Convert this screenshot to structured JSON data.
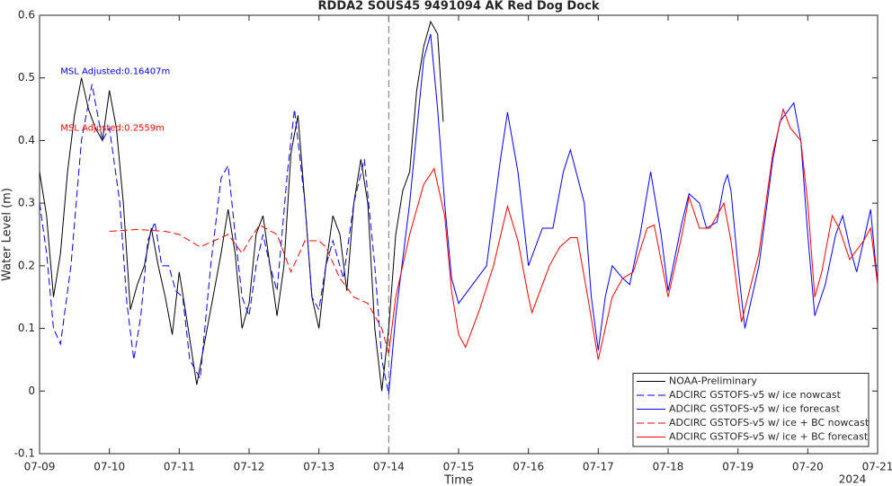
{
  "chart_data": {
    "type": "line",
    "title": "RDDA2 SOUS45 9491094 AK Red Dog Dock",
    "x_label": "Time",
    "y_label": "Water Level (m)",
    "x_year": "2024",
    "xlim": [
      9,
      21
    ],
    "ylim": [
      -0.1,
      0.6
    ],
    "xticks": [
      {
        "value": 9,
        "label": "07-09"
      },
      {
        "value": 10,
        "label": "07-10"
      },
      {
        "value": 11,
        "label": "07-11"
      },
      {
        "value": 12,
        "label": "07-12"
      },
      {
        "value": 13,
        "label": "07-13"
      },
      {
        "value": 14,
        "label": "07-14"
      },
      {
        "value": 15,
        "label": "07-15"
      },
      {
        "value": 16,
        "label": "07-16"
      },
      {
        "value": 17,
        "label": "07-17"
      },
      {
        "value": 18,
        "label": "07-18"
      },
      {
        "value": 19,
        "label": "07-19"
      },
      {
        "value": 20,
        "label": "07-20"
      },
      {
        "value": 21,
        "label": "07-21"
      }
    ],
    "yticks": [
      -0.1,
      0,
      0.1,
      0.2,
      0.3,
      0.4,
      0.5,
      0.6
    ],
    "grid": false,
    "legend": "lower-right",
    "divider_x": 14,
    "annotations": [
      {
        "text": "MSL Adjusted:0.16407m",
        "color": "#0000ff",
        "x": 9.3,
        "y": 0.51
      },
      {
        "text": "MSL Adjusted:0.2559m",
        "color": "#ff0000",
        "x": 9.3,
        "y": 0.42
      }
    ],
    "series": [
      {
        "name": "NOAA-Preliminary",
        "color": "#000000",
        "dash": false,
        "x": [
          9.0,
          9.1,
          9.2,
          9.3,
          9.4,
          9.5,
          9.6,
          9.7,
          9.8,
          9.9,
          10.0,
          10.1,
          10.2,
          10.3,
          10.4,
          10.5,
          10.6,
          10.7,
          10.8,
          10.9,
          11.0,
          11.1,
          11.25,
          11.4,
          11.5,
          11.6,
          11.7,
          11.8,
          11.9,
          12.0,
          12.1,
          12.2,
          12.3,
          12.4,
          12.5,
          12.6,
          12.7,
          12.8,
          12.9,
          13.0,
          13.1,
          13.2,
          13.3,
          13.4,
          13.5,
          13.6,
          13.7,
          13.8,
          13.9,
          14.0,
          14.1,
          14.2,
          14.3,
          14.4,
          14.5,
          14.6,
          14.7,
          14.78
        ],
        "values": [
          0.35,
          0.28,
          0.15,
          0.22,
          0.35,
          0.44,
          0.5,
          0.45,
          0.42,
          0.4,
          0.48,
          0.42,
          0.3,
          0.13,
          0.17,
          0.2,
          0.26,
          0.2,
          0.15,
          0.09,
          0.19,
          0.12,
          0.01,
          0.1,
          0.16,
          0.22,
          0.29,
          0.22,
          0.1,
          0.14,
          0.25,
          0.28,
          0.2,
          0.12,
          0.2,
          0.38,
          0.44,
          0.3,
          0.15,
          0.1,
          0.2,
          0.28,
          0.25,
          0.16,
          0.3,
          0.37,
          0.3,
          0.1,
          0.0,
          0.1,
          0.25,
          0.32,
          0.35,
          0.48,
          0.55,
          0.59,
          0.57,
          0.43
        ]
      },
      {
        "name": "ADCIRC GSTOFS-v5  w/ ice nowcast",
        "color": "#0000ff",
        "dash": true,
        "x": [
          9.0,
          9.1,
          9.2,
          9.3,
          9.45,
          9.6,
          9.75,
          9.9,
          10.0,
          10.15,
          10.25,
          10.35,
          10.45,
          10.55,
          10.65,
          10.75,
          10.85,
          10.95,
          11.05,
          11.15,
          11.3,
          11.45,
          11.6,
          11.7,
          11.8,
          11.9,
          12.0,
          12.1,
          12.2,
          12.3,
          12.4,
          12.55,
          12.65,
          12.8,
          12.9,
          13.0,
          13.1,
          13.2,
          13.35,
          13.5,
          13.65,
          13.8,
          13.9,
          14.0
        ],
        "values": [
          0.3,
          0.22,
          0.1,
          0.075,
          0.2,
          0.4,
          0.49,
          0.4,
          0.42,
          0.3,
          0.14,
          0.05,
          0.12,
          0.24,
          0.27,
          0.2,
          0.2,
          0.16,
          0.15,
          0.05,
          0.02,
          0.2,
          0.34,
          0.36,
          0.25,
          0.15,
          0.12,
          0.2,
          0.25,
          0.2,
          0.16,
          0.35,
          0.45,
          0.3,
          0.15,
          0.13,
          0.2,
          0.24,
          0.18,
          0.3,
          0.37,
          0.2,
          0.05,
          -0.005
        ]
      },
      {
        "name": "ADCIRC GSTOFS-v5  w/ ice forecast",
        "color": "#0000ff",
        "dash": false,
        "x": [
          14.0,
          14.1,
          14.3,
          14.5,
          14.6,
          14.7,
          14.8,
          14.9,
          15.0,
          15.2,
          15.4,
          15.6,
          15.7,
          15.85,
          16.0,
          16.2,
          16.35,
          16.5,
          16.6,
          16.8,
          16.9,
          17.0,
          17.1,
          17.2,
          17.35,
          17.45,
          17.6,
          17.75,
          17.9,
          18.0,
          18.2,
          18.3,
          18.45,
          18.55,
          18.7,
          18.8,
          18.85,
          18.9,
          19.0,
          19.1,
          19.3,
          19.5,
          19.6,
          19.8,
          19.9,
          20.0,
          20.1,
          20.25,
          20.4,
          20.5,
          20.6,
          20.7,
          20.8,
          20.9,
          21.0
        ],
        "values": [
          -0.005,
          0.12,
          0.3,
          0.53,
          0.57,
          0.45,
          0.3,
          0.18,
          0.14,
          0.17,
          0.2,
          0.37,
          0.445,
          0.35,
          0.2,
          0.26,
          0.26,
          0.35,
          0.385,
          0.3,
          0.15,
          0.065,
          0.15,
          0.2,
          0.18,
          0.17,
          0.25,
          0.35,
          0.25,
          0.16,
          0.27,
          0.315,
          0.3,
          0.26,
          0.27,
          0.33,
          0.345,
          0.32,
          0.2,
          0.1,
          0.2,
          0.37,
          0.43,
          0.46,
          0.4,
          0.25,
          0.12,
          0.17,
          0.25,
          0.28,
          0.23,
          0.19,
          0.24,
          0.29,
          0.17
        ]
      },
      {
        "name": "ADCIRC GSTOFS-v5  w/ ice + BC nowcast",
        "color": "#ff0000",
        "dash": true,
        "x": [
          10.0,
          10.4,
          10.8,
          11.0,
          11.3,
          11.5,
          11.7,
          11.9,
          12.0,
          12.15,
          12.4,
          12.6,
          12.8,
          13.0,
          13.1,
          13.3,
          13.5,
          13.7,
          13.9,
          14.0
        ],
        "values": [
          0.255,
          0.258,
          0.255,
          0.25,
          0.23,
          0.24,
          0.25,
          0.22,
          0.24,
          0.265,
          0.25,
          0.19,
          0.24,
          0.24,
          0.23,
          0.18,
          0.15,
          0.14,
          0.1,
          0.06
        ]
      },
      {
        "name": "ADCIRC GSTOFS-v5  w/ ice + BC forecast",
        "color": "#ff0000",
        "dash": false,
        "x": [
          14.0,
          14.1,
          14.3,
          14.5,
          14.65,
          14.8,
          14.9,
          15.0,
          15.1,
          15.3,
          15.5,
          15.7,
          15.85,
          16.0,
          16.05,
          16.3,
          16.45,
          16.6,
          16.7,
          16.85,
          17.0,
          17.2,
          17.35,
          17.5,
          17.7,
          17.8,
          17.95,
          18.0,
          18.2,
          18.3,
          18.45,
          18.6,
          18.8,
          18.9,
          19.05,
          19.3,
          19.5,
          19.65,
          19.75,
          19.9,
          20.0,
          20.1,
          20.2,
          20.35,
          20.45,
          20.6,
          20.8,
          20.9,
          21.0
        ],
        "values": [
          0.06,
          0.15,
          0.25,
          0.33,
          0.355,
          0.28,
          0.16,
          0.09,
          0.07,
          0.13,
          0.2,
          0.295,
          0.24,
          0.15,
          0.125,
          0.2,
          0.23,
          0.245,
          0.245,
          0.15,
          0.05,
          0.15,
          0.18,
          0.19,
          0.26,
          0.265,
          0.18,
          0.15,
          0.25,
          0.31,
          0.26,
          0.26,
          0.3,
          0.24,
          0.11,
          0.22,
          0.38,
          0.45,
          0.42,
          0.4,
          0.3,
          0.15,
          0.19,
          0.28,
          0.26,
          0.21,
          0.24,
          0.26,
          0.17
        ]
      }
    ]
  }
}
